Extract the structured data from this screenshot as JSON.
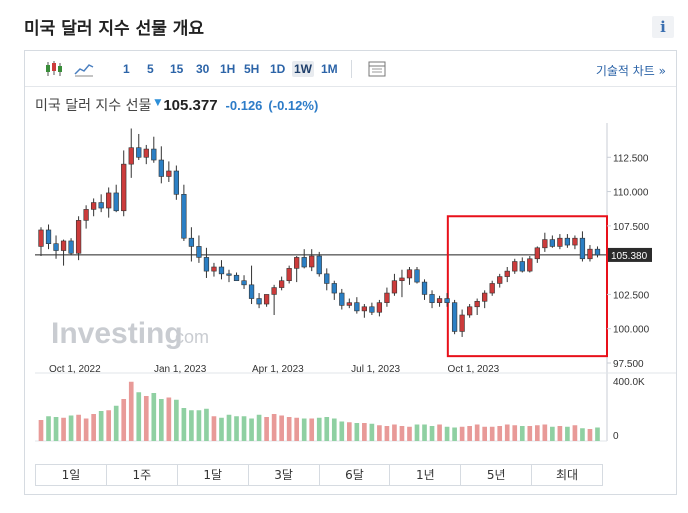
{
  "page": {
    "title": "미국 달러 지수 선물 개요",
    "info_icon": "i"
  },
  "toolbar": {
    "chart_type_icons": [
      "candlestick-icon",
      "area-chart-icon"
    ],
    "intervals": [
      "1",
      "5",
      "15",
      "30",
      "1H",
      "5H",
      "1D",
      "1W",
      "1M"
    ],
    "active_interval": "1W",
    "settings_icon": "indicators-icon",
    "advanced_link": "기술적 차트 »"
  },
  "quote": {
    "name": "미국 달러 지수 선물",
    "price": "105.377",
    "change": "-0.126",
    "change_pct": "(-0.12%)",
    "down_color": "#2d8fd8"
  },
  "watermark": {
    "main": "Investing",
    "suffix": ".com"
  },
  "ranges": [
    "1일",
    "1주",
    "1달",
    "3달",
    "6달",
    "1년",
    "5년",
    "최대"
  ],
  "colors": {
    "up": "#cc3b3b",
    "down": "#2b7fc4",
    "vol_up": "#e89a98",
    "vol_down": "#8fd0a2",
    "highlight": "#e8101a"
  },
  "chart_data": {
    "type": "candlestick",
    "x_ticks": [
      "Oct 1, 2022",
      "Jan 1, 2023",
      "Apr 1, 2023",
      "Jul 1, 2023",
      "Oct 1, 2023"
    ],
    "y_ticks": [
      "112.500",
      "110.000",
      "107.500",
      "102.500",
      "100.000",
      "97.500"
    ],
    "ylim": [
      97.5,
      115.0
    ],
    "last_price_label": "105.380",
    "last_price": 105.38,
    "volume_ticks": [
      "400.0K",
      "0"
    ],
    "volume_max": 400000,
    "candles": [
      [
        106.0,
        107.4,
        105.3,
        107.2
      ],
      [
        107.2,
        107.6,
        105.8,
        106.2
      ],
      [
        106.2,
        106.8,
        105.1,
        105.7
      ],
      [
        105.7,
        106.5,
        104.6,
        106.4
      ],
      [
        106.4,
        106.6,
        105.4,
        105.5
      ],
      [
        105.5,
        108.2,
        105.0,
        107.9
      ],
      [
        107.9,
        109.0,
        107.3,
        108.7
      ],
      [
        108.7,
        109.5,
        108.2,
        109.2
      ],
      [
        109.2,
        109.8,
        108.5,
        108.8
      ],
      [
        108.8,
        110.3,
        108.1,
        109.9
      ],
      [
        109.9,
        110.5,
        108.5,
        108.6
      ],
      [
        108.6,
        113.0,
        108.2,
        112.0
      ],
      [
        112.0,
        114.6,
        111.0,
        113.2
      ],
      [
        113.2,
        114.2,
        112.3,
        112.5
      ],
      [
        112.5,
        113.4,
        112.0,
        113.1
      ],
      [
        113.1,
        114.0,
        112.1,
        112.3
      ],
      [
        112.3,
        113.3,
        110.6,
        111.1
      ],
      [
        111.1,
        112.2,
        110.7,
        111.5
      ],
      [
        111.5,
        111.9,
        109.4,
        109.8
      ],
      [
        109.8,
        110.5,
        106.4,
        106.6
      ],
      [
        106.6,
        107.4,
        104.9,
        106.0
      ],
      [
        106.0,
        106.8,
        104.8,
        105.2
      ],
      [
        105.2,
        105.9,
        103.7,
        104.2
      ],
      [
        104.2,
        104.8,
        103.8,
        104.5
      ],
      [
        104.5,
        105.0,
        103.6,
        104.0
      ],
      [
        104.0,
        104.3,
        103.4,
        103.9
      ],
      [
        103.9,
        104.1,
        103.5,
        103.5
      ],
      [
        103.5,
        103.9,
        102.9,
        103.2
      ],
      [
        103.2,
        104.6,
        101.8,
        102.2
      ],
      [
        102.2,
        102.6,
        101.5,
        101.8
      ],
      [
        101.8,
        102.5,
        101.6,
        102.5
      ],
      [
        102.5,
        103.2,
        101.0,
        103.0
      ],
      [
        103.0,
        103.8,
        102.8,
        103.5
      ],
      [
        103.5,
        104.6,
        103.3,
        104.4
      ],
      [
        104.4,
        105.3,
        103.4,
        105.2
      ],
      [
        105.2,
        105.8,
        104.4,
        104.5
      ],
      [
        104.5,
        105.8,
        104.2,
        105.3
      ],
      [
        105.3,
        105.6,
        103.8,
        104.0
      ],
      [
        104.0,
        104.4,
        102.8,
        103.3
      ],
      [
        103.3,
        103.5,
        102.1,
        102.6
      ],
      [
        102.6,
        102.9,
        101.4,
        101.7
      ],
      [
        101.7,
        102.2,
        101.5,
        101.9
      ],
      [
        101.9,
        102.3,
        101.1,
        101.3
      ],
      [
        101.3,
        101.8,
        100.8,
        101.6
      ],
      [
        101.6,
        101.9,
        101.0,
        101.2
      ],
      [
        101.2,
        102.1,
        100.9,
        101.9
      ],
      [
        101.9,
        103.0,
        101.6,
        102.6
      ],
      [
        102.6,
        104.0,
        102.4,
        103.5
      ],
      [
        103.5,
        104.3,
        102.3,
        103.7
      ],
      [
        103.7,
        104.5,
        103.2,
        104.3
      ],
      [
        104.3,
        104.5,
        103.3,
        103.4
      ],
      [
        103.4,
        103.6,
        102.1,
        102.5
      ],
      [
        102.5,
        102.8,
        101.5,
        101.9
      ],
      [
        101.9,
        102.4,
        101.6,
        102.2
      ],
      [
        102.2,
        102.6,
        101.6,
        101.9
      ],
      [
        101.9,
        102.1,
        99.6,
        99.8
      ],
      [
        99.8,
        101.4,
        99.4,
        101.0
      ],
      [
        101.0,
        101.8,
        100.8,
        101.6
      ],
      [
        101.6,
        102.2,
        101.0,
        102.0
      ],
      [
        102.0,
        102.8,
        101.5,
        102.6
      ],
      [
        102.6,
        103.5,
        102.4,
        103.3
      ],
      [
        103.3,
        104.0,
        103.0,
        103.8
      ],
      [
        103.8,
        104.5,
        103.4,
        104.2
      ],
      [
        104.2,
        105.1,
        104.0,
        104.9
      ],
      [
        104.9,
        105.2,
        104.1,
        104.2
      ],
      [
        104.2,
        105.3,
        104.1,
        105.1
      ],
      [
        105.1,
        106.0,
        104.8,
        105.9
      ],
      [
        105.9,
        107.0,
        105.6,
        106.5
      ],
      [
        106.5,
        106.8,
        105.9,
        106.0
      ],
      [
        106.0,
        106.9,
        105.8,
        106.6
      ],
      [
        106.6,
        106.9,
        105.9,
        106.1
      ],
      [
        106.1,
        106.8,
        105.8,
        106.6
      ],
      [
        106.6,
        107.1,
        104.9,
        105.1
      ],
      [
        105.1,
        106.1,
        104.9,
        105.8
      ],
      [
        105.8,
        106.0,
        105.2,
        105.38
      ]
    ],
    "volumes": [
      140,
      165,
      160,
      155,
      170,
      175,
      150,
      180,
      200,
      205,
      235,
      280,
      395,
      325,
      300,
      320,
      280,
      290,
      275,
      220,
      205,
      205,
      215,
      165,
      155,
      175,
      165,
      165,
      150,
      175,
      160,
      180,
      170,
      160,
      155,
      150,
      150,
      155,
      160,
      150,
      130,
      125,
      120,
      120,
      115,
      105,
      100,
      110,
      100,
      95,
      110,
      110,
      100,
      110,
      95,
      90,
      95,
      100,
      110,
      95,
      95,
      100,
      110,
      105,
      100,
      100,
      105,
      110,
      95,
      100,
      95,
      105,
      85,
      80,
      90
    ],
    "highlight_range": {
      "first_candle": 55,
      "y_top": 108.2,
      "y_bottom": 98.0
    }
  }
}
